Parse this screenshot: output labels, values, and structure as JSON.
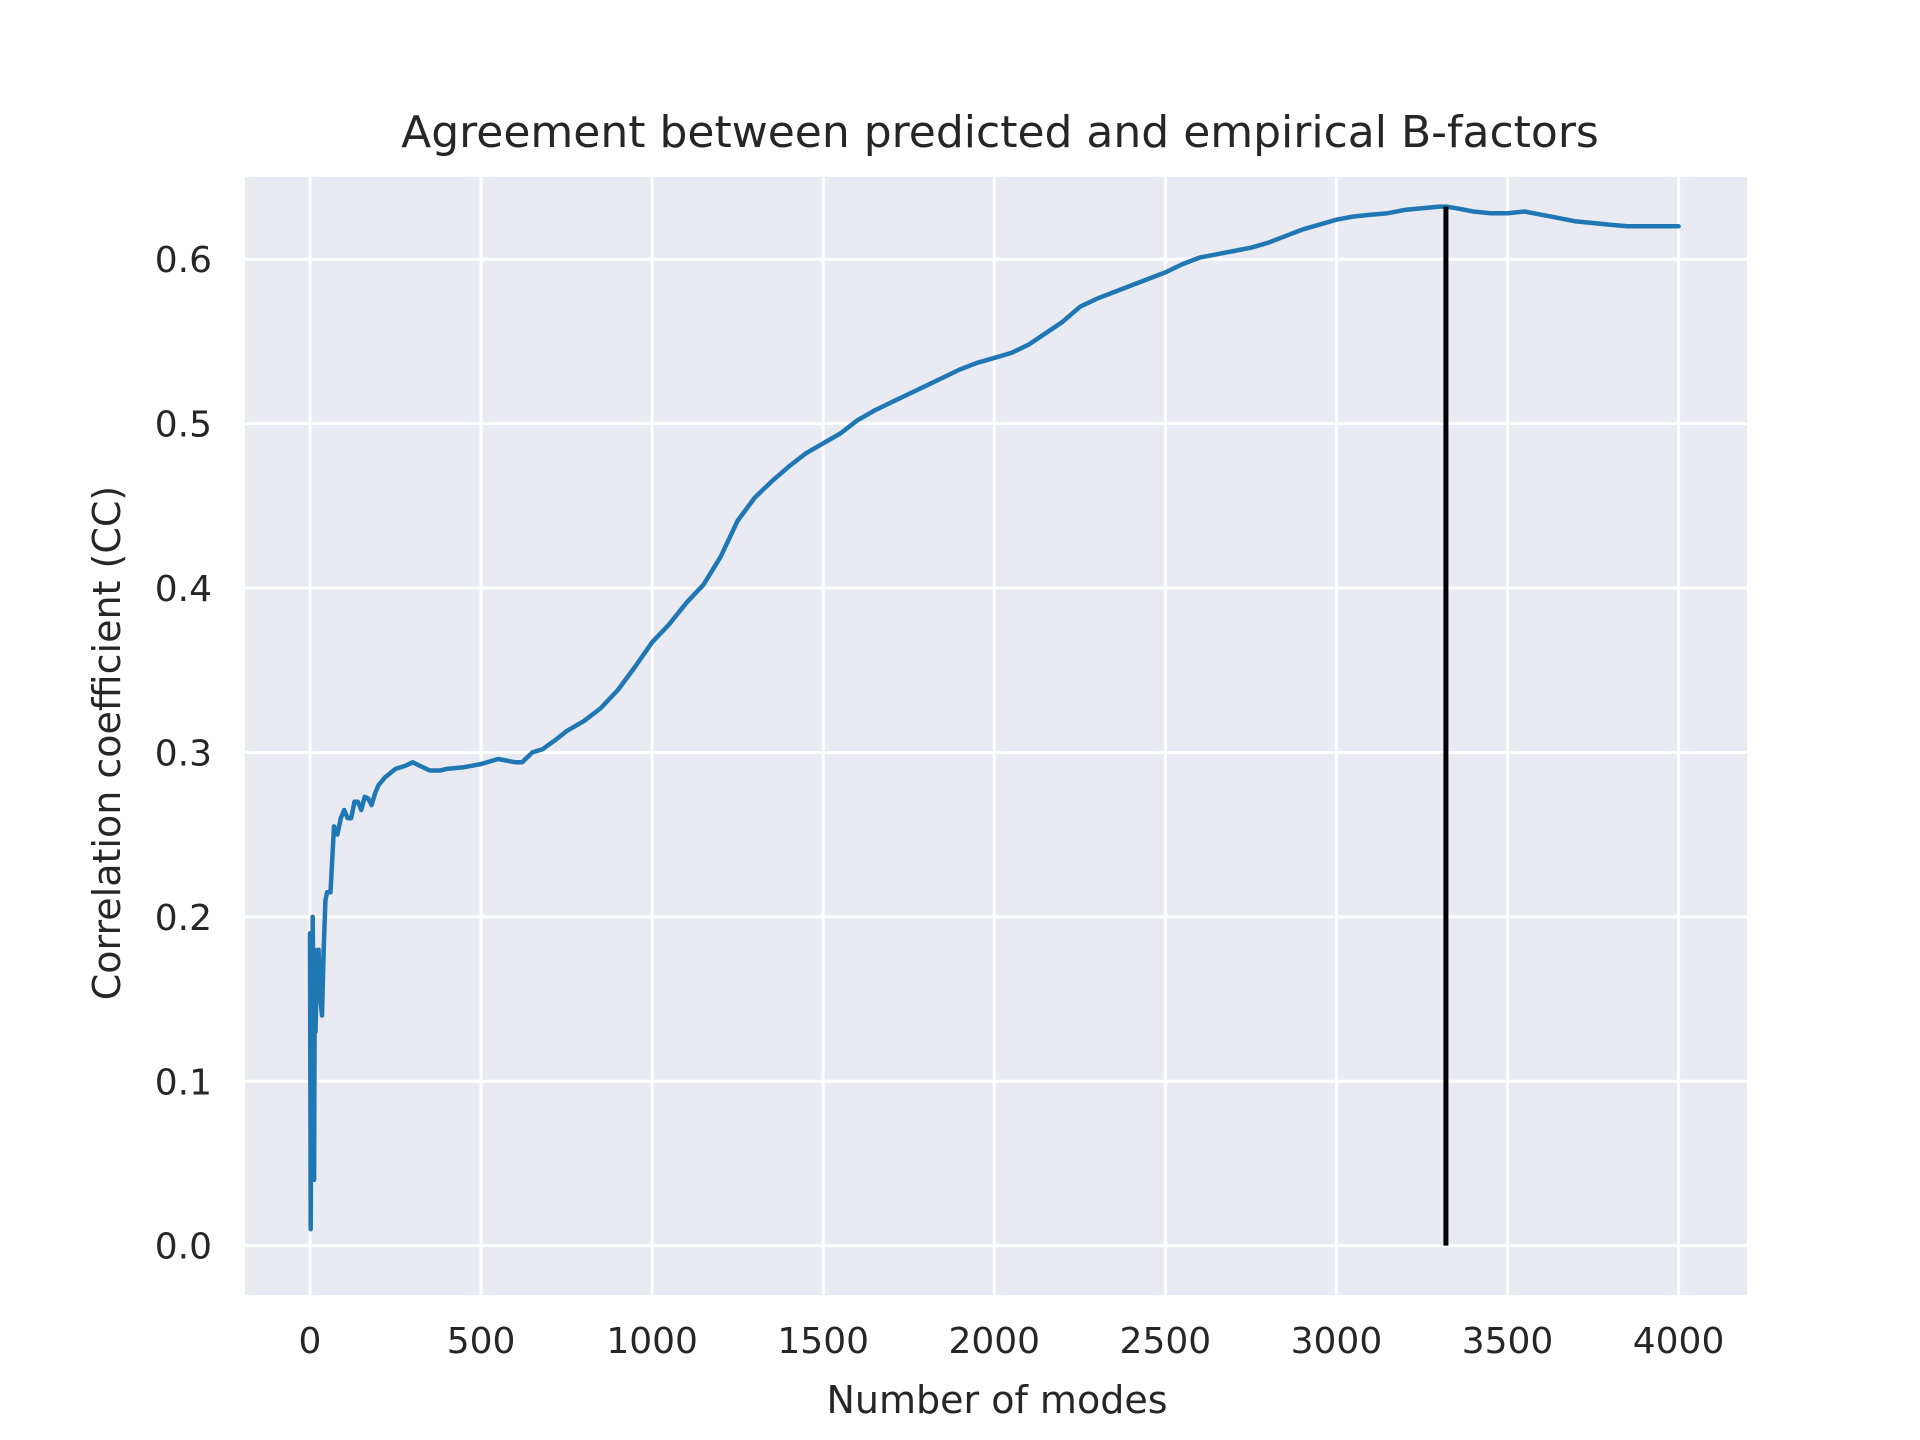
{
  "chart_data": {
    "type": "line",
    "title": "Agreement between predicted and empirical B-factors",
    "xlabel": "Number of modes",
    "ylabel": "Correlation coefficient (CC)",
    "xlim": [
      -190,
      4200
    ],
    "ylim": [
      -0.03,
      0.65
    ],
    "x_ticks": [
      0,
      500,
      1000,
      1500,
      2000,
      2500,
      3000,
      3500,
      4000
    ],
    "y_ticks": [
      0.0,
      0.1,
      0.2,
      0.3,
      0.4,
      0.5,
      0.6
    ],
    "x_tick_labels": [
      "0",
      "500",
      "1000",
      "1500",
      "2000",
      "2500",
      "3000",
      "3500",
      "4000"
    ],
    "y_tick_labels": [
      "0.0",
      "0.1",
      "0.2",
      "0.3",
      "0.4",
      "0.5",
      "0.6"
    ],
    "grid": true,
    "colors": {
      "series": "#1f77b4",
      "marker": "#000000",
      "plot_bg": "#eaeaf2",
      "grid": "#ffffff"
    },
    "series": [
      {
        "x": [
          0,
          2,
          4,
          6,
          8,
          10,
          12,
          14,
          16,
          20,
          25,
          30,
          35,
          40,
          45,
          50,
          60,
          70,
          80,
          90,
          100,
          110,
          120,
          130,
          140,
          150,
          160,
          170,
          180,
          190,
          200,
          220,
          250,
          280,
          300,
          320,
          350,
          380,
          400,
          450,
          500,
          550,
          600,
          620,
          650,
          680,
          700,
          720,
          750,
          800,
          850,
          900,
          950,
          1000,
          1050,
          1100,
          1150,
          1200,
          1250,
          1300,
          1350,
          1400,
          1450,
          1500,
          1550,
          1600,
          1650,
          1700,
          1750,
          1800,
          1850,
          1900,
          1950,
          2000,
          2050,
          2100,
          2150,
          2200,
          2250,
          2300,
          2350,
          2400,
          2450,
          2500,
          2550,
          2600,
          2650,
          2700,
          2750,
          2800,
          2850,
          2900,
          2950,
          3000,
          3050,
          3100,
          3150,
          3200,
          3250,
          3300,
          3320,
          3350,
          3400,
          3450,
          3500,
          3550,
          3600,
          3650,
          3700,
          3750,
          3800,
          3850,
          3900,
          3950,
          4000
        ],
        "y": [
          0.19,
          0.01,
          0.12,
          0.07,
          0.2,
          0.14,
          0.04,
          0.18,
          0.13,
          0.17,
          0.18,
          0.15,
          0.14,
          0.18,
          0.21,
          0.215,
          0.215,
          0.255,
          0.25,
          0.26,
          0.265,
          0.26,
          0.26,
          0.27,
          0.27,
          0.265,
          0.273,
          0.272,
          0.268,
          0.275,
          0.28,
          0.285,
          0.29,
          0.292,
          0.294,
          0.292,
          0.289,
          0.289,
          0.29,
          0.291,
          0.293,
          0.296,
          0.294,
          0.294,
          0.3,
          0.302,
          0.305,
          0.308,
          0.313,
          0.319,
          0.327,
          0.338,
          0.352,
          0.367,
          0.378,
          0.391,
          0.402,
          0.419,
          0.441,
          0.455,
          0.465,
          0.474,
          0.482,
          0.488,
          0.494,
          0.502,
          0.508,
          0.513,
          0.518,
          0.523,
          0.528,
          0.533,
          0.537,
          0.54,
          0.543,
          0.548,
          0.555,
          0.562,
          0.571,
          0.576,
          0.58,
          0.584,
          0.588,
          0.592,
          0.597,
          0.601,
          0.603,
          0.605,
          0.607,
          0.61,
          0.614,
          0.618,
          0.621,
          0.624,
          0.626,
          0.627,
          0.628,
          0.63,
          0.631,
          0.632,
          0.632,
          0.631,
          0.629,
          0.628,
          0.628,
          0.629,
          0.627,
          0.625,
          0.623,
          0.622,
          0.621,
          0.62,
          0.62,
          0.62,
          0.62
        ]
      }
    ],
    "vline": {
      "x": 3320,
      "y": [
        0.0,
        0.632
      ]
    }
  }
}
